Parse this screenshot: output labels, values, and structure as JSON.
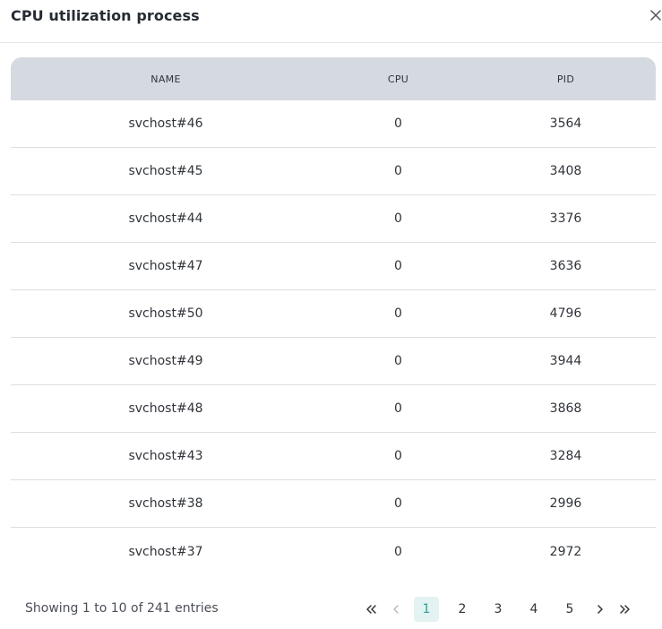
{
  "modal": {
    "title": "CPU utilization process"
  },
  "table": {
    "headers": {
      "name": "NAME",
      "cpu": "CPU",
      "pid": "PID"
    },
    "rows": [
      {
        "name": "svchost#46",
        "cpu": "0",
        "pid": "3564"
      },
      {
        "name": "svchost#45",
        "cpu": "0",
        "pid": "3408"
      },
      {
        "name": "svchost#44",
        "cpu": "0",
        "pid": "3376"
      },
      {
        "name": "svchost#47",
        "cpu": "0",
        "pid": "3636"
      },
      {
        "name": "svchost#50",
        "cpu": "0",
        "pid": "4796"
      },
      {
        "name": "svchost#49",
        "cpu": "0",
        "pid": "3944"
      },
      {
        "name": "svchost#48",
        "cpu": "0",
        "pid": "3868"
      },
      {
        "name": "svchost#43",
        "cpu": "0",
        "pid": "3284"
      },
      {
        "name": "svchost#38",
        "cpu": "0",
        "pid": "2996"
      },
      {
        "name": "svchost#37",
        "cpu": "0",
        "pid": "2972"
      }
    ]
  },
  "footer": {
    "showing_text": "Showing 1 to 10 of 241 entries"
  },
  "pagination": {
    "pages": [
      "1",
      "2",
      "3",
      "4",
      "5"
    ],
    "active_page": "1"
  },
  "colors": {
    "header_bg": "#d5d9e0",
    "accent": "#2aa39a",
    "active_page_bg": "#e3f3f2"
  }
}
